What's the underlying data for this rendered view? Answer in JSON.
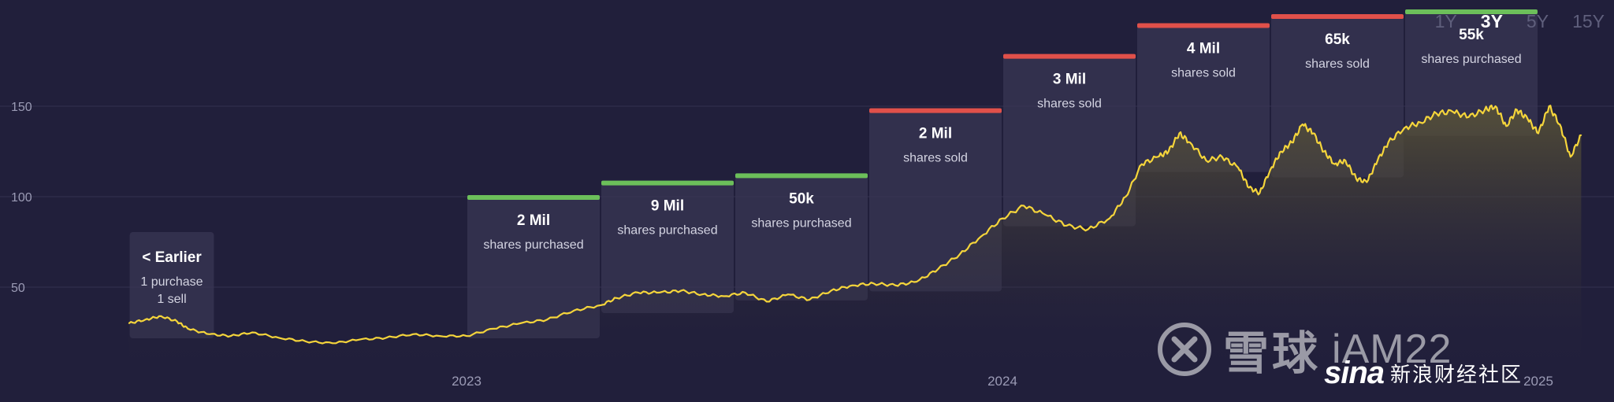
{
  "range_tabs": {
    "items": [
      {
        "label": "1Y",
        "active": false
      },
      {
        "label": "3Y",
        "active": true
      },
      {
        "label": "5Y",
        "active": false
      },
      {
        "label": "15Y",
        "active": false
      }
    ]
  },
  "colors": {
    "background": "#211f3b",
    "price_line": "#f5d53b",
    "purchase": "#6cbf5a",
    "sale": "#e0504a",
    "neutral": "#5a5a76",
    "grid": "#33314f",
    "box_fill": "#3a3856"
  },
  "watermarks": {
    "xueqiu_text": "雪球",
    "xueqiu_user": "iAM22",
    "sina_logo": "sina",
    "sina_text": "新浪财经社区"
  },
  "chart_data": {
    "type": "line",
    "title": "",
    "xlabel": "",
    "ylabel": "",
    "ylim": [
      0,
      170
    ],
    "y_ticks": [
      50,
      100,
      150
    ],
    "x_axis": {
      "start": "2022-05",
      "end": "2025-02",
      "ticks": [
        {
          "label": "2023",
          "x": 2023.0
        },
        {
          "label": "2024",
          "x": 2024.0
        },
        {
          "label": "2025",
          "x": 2025.0
        }
      ]
    },
    "grid": true,
    "series": [
      {
        "name": "",
        "x": [
          2022.37,
          2022.4,
          2022.43,
          2022.46,
          2022.48,
          2022.52,
          2022.56,
          2022.6,
          2022.65,
          2022.7,
          2022.75,
          2022.8,
          2022.85,
          2022.9,
          2022.95,
          2023.0,
          2023.05,
          2023.1,
          2023.15,
          2023.2,
          2023.25,
          2023.28,
          2023.32,
          2023.36,
          2023.4,
          2023.44,
          2023.48,
          2023.52,
          2023.56,
          2023.6,
          2023.64,
          2023.68,
          2023.72,
          2023.76,
          2023.8,
          2023.84,
          2023.88,
          2023.92,
          2023.96,
          2024.0,
          2024.04,
          2024.08,
          2024.12,
          2024.16,
          2024.2,
          2024.23,
          2024.26,
          2024.29,
          2024.31,
          2024.33,
          2024.35,
          2024.38,
          2024.41,
          2024.44,
          2024.46,
          2024.48,
          2024.5,
          2024.52,
          2024.54,
          2024.56,
          2024.58,
          2024.6,
          2024.62,
          2024.64,
          2024.66,
          2024.68,
          2024.7,
          2024.72,
          2024.75,
          2024.78,
          2024.81,
          2024.84,
          2024.87,
          2024.9,
          2024.92,
          2024.94,
          2024.96,
          2024.98,
          2025.0,
          2025.02,
          2025.04,
          2025.06,
          2025.08
        ],
        "values": [
          30,
          32,
          34,
          31,
          27,
          24,
          23,
          25,
          22,
          20,
          19,
          21,
          22,
          24,
          23,
          23,
          27,
          30,
          32,
          37,
          40,
          44,
          47,
          47,
          48,
          46,
          45,
          47,
          42,
          46,
          43,
          48,
          51,
          52,
          51,
          53,
          60,
          68,
          78,
          88,
          95,
          90,
          84,
          82,
          88,
          100,
          118,
          122,
          125,
          135,
          130,
          120,
          122,
          116,
          105,
          102,
          115,
          125,
          130,
          140,
          135,
          125,
          118,
          120,
          110,
          108,
          120,
          130,
          138,
          141,
          146,
          147,
          144,
          148,
          150,
          139,
          148,
          143,
          135,
          150,
          140,
          122,
          134
        ]
      }
    ],
    "annotations": [
      {
        "kind": "earlier",
        "x_start": 2022.37,
        "x_end": 2022.53,
        "value": "< Earlier",
        "lines": [
          "1 purchase",
          "1 sell"
        ]
      },
      {
        "kind": "purchase",
        "x_start": 2023.0,
        "x_end": 2023.25,
        "value": "2 Mil",
        "lines": [
          "shares purchased"
        ]
      },
      {
        "kind": "purchase",
        "x_start": 2023.25,
        "x_end": 2023.5,
        "value": "9 Mil",
        "lines": [
          "shares purchased"
        ]
      },
      {
        "kind": "purchase",
        "x_start": 2023.5,
        "x_end": 2023.75,
        "value": "50k",
        "lines": [
          "shares purchased"
        ]
      },
      {
        "kind": "sale",
        "x_start": 2023.75,
        "x_end": 2024.0,
        "value": "2 Mil",
        "lines": [
          "shares sold"
        ]
      },
      {
        "kind": "sale",
        "x_start": 2024.0,
        "x_end": 2024.25,
        "value": "3 Mil",
        "lines": [
          "shares sold"
        ]
      },
      {
        "kind": "sale",
        "x_start": 2024.25,
        "x_end": 2024.5,
        "value": "4 Mil",
        "lines": [
          "shares sold"
        ]
      },
      {
        "kind": "sale",
        "x_start": 2024.5,
        "x_end": 2024.75,
        "value": "65k",
        "lines": [
          "shares sold"
        ]
      },
      {
        "kind": "purchase",
        "x_start": 2024.75,
        "x_end": 2025.0,
        "value": "55k",
        "lines": [
          "shares purchased"
        ]
      }
    ]
  }
}
